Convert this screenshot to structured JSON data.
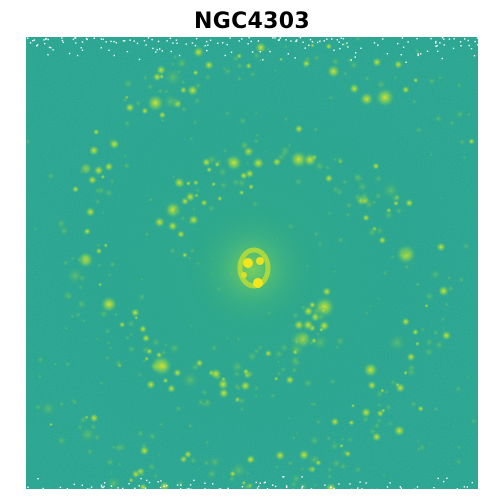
{
  "title": "NGC4303",
  "image": {
    "description_colormap": "viridis",
    "colors": {
      "background": "#ffffff",
      "base": "#23a08a",
      "low": "#2a8c8a",
      "mid": "#47b97a",
      "high": "#8fd14f",
      "peak": "#e6e41c",
      "title": "#000000"
    }
  }
}
